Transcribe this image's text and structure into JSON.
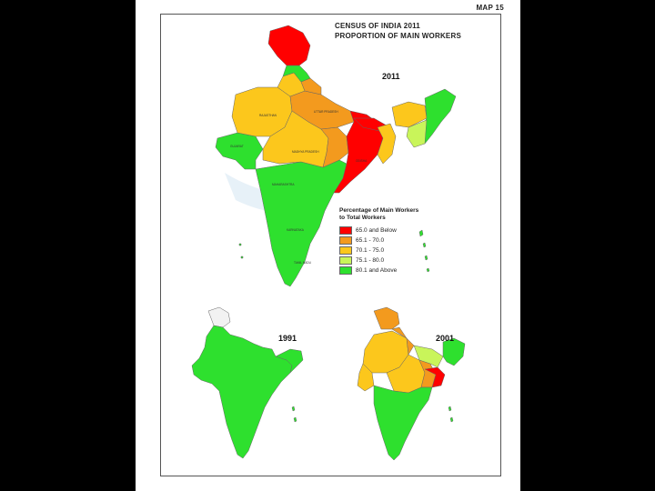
{
  "header": {
    "map_number": "MAP 15",
    "title_line1": "CENSUS OF INDIA 2011",
    "title_line2": "PROPORTION OF MAIN WORKERS"
  },
  "maps": {
    "main_year": "2011",
    "inset_left_year": "1991",
    "inset_right_year": "2001"
  },
  "legend": {
    "title_line1": "Percentage of Main Workers",
    "title_line2": "to Total Workers",
    "items": [
      {
        "label": "65.0 and Below",
        "color": "#ff0000"
      },
      {
        "label": "65.1 - 70.0",
        "color": "#f39a1e"
      },
      {
        "label": "70.1 - 75.0",
        "color": "#fcc71c"
      },
      {
        "label": "75.1 - 80.0",
        "color": "#c9f55a"
      },
      {
        "label": "80.1 and Above",
        "color": "#2ee02e"
      }
    ]
  },
  "colors": {
    "background": "#000000",
    "sheet": "#ffffff",
    "sea_fringe": "#cfe3f2",
    "border": "#666666"
  }
}
